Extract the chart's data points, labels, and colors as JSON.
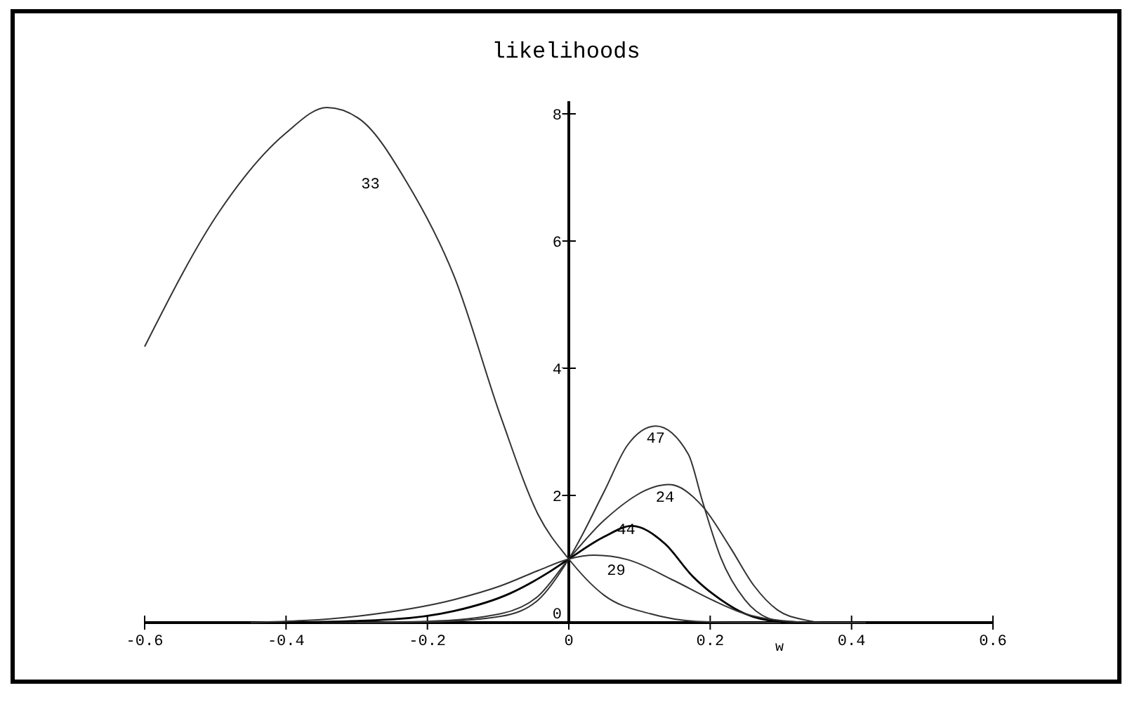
{
  "chart_data": {
    "type": "line",
    "title": "likelihoods",
    "xlabel": "w",
    "xlim": [
      -0.6,
      0.6
    ],
    "ylim": [
      0,
      8.2
    ],
    "xticks": [
      -0.6,
      -0.4,
      -0.2,
      0,
      0.2,
      0.4,
      0.6
    ],
    "yticks": [
      0,
      2,
      4,
      6,
      8
    ],
    "grid": false,
    "legend": false,
    "marker": "none",
    "line_style": "solid",
    "series": [
      {
        "name": "33",
        "color": "#333333",
        "x": [
          -0.6,
          -0.494,
          -0.401,
          -0.342,
          -0.295,
          -0.229,
          -0.162,
          -0.096,
          -0.043,
          0,
          0.05,
          0.115,
          0.18,
          0.25,
          0.3
        ],
        "values": [
          4.34,
          6.47,
          7.69,
          8.1,
          7.91,
          6.92,
          5.44,
          3.23,
          1.69,
          1,
          0.43,
          0.14,
          0.02,
          0,
          0
        ]
      },
      {
        "name": "47",
        "color": "#333333",
        "x": [
          -0.3,
          -0.2,
          -0.096,
          -0.043,
          0,
          0.05,
          0.083,
          0.123,
          0.169,
          0.189,
          0.215,
          0.249,
          0.282,
          0.315,
          0.35
        ],
        "values": [
          0,
          0.01,
          0.1,
          0.36,
          1,
          2.06,
          2.79,
          3.09,
          2.65,
          1.91,
          1.02,
          0.36,
          0.07,
          0,
          0
        ]
      },
      {
        "name": "24",
        "color": "#333333",
        "x": [
          -0.35,
          -0.2,
          -0.096,
          -0.043,
          0,
          0.05,
          0.142,
          0.189,
          0.229,
          0.262,
          0.295,
          0.335,
          0.36,
          0.4
        ],
        "values": [
          0,
          0.02,
          0.14,
          0.42,
          1,
          1.61,
          2.17,
          1.83,
          1.17,
          0.58,
          0.2,
          0.04,
          0,
          0
        ]
      },
      {
        "name": "44",
        "color": "#000000",
        "x": [
          -0.4,
          -0.25,
          -0.163,
          -0.083,
          -0.03,
          0,
          0.05,
          0.089,
          0.136,
          0.175,
          0.215,
          0.249,
          0.295,
          0.35,
          0.38
        ],
        "values": [
          0,
          0.05,
          0.18,
          0.46,
          0.78,
          1,
          1.35,
          1.52,
          1.24,
          0.73,
          0.36,
          0.14,
          0.02,
          0,
          0
        ]
      },
      {
        "name": "29",
        "color": "#333333",
        "x": [
          -0.45,
          -0.3,
          -0.163,
          -0.096,
          -0.043,
          0,
          0.036,
          0.083,
          0.149,
          0.202,
          0.249,
          0.302,
          0.35,
          0.42
        ],
        "values": [
          0,
          0.1,
          0.36,
          0.58,
          0.82,
          1,
          1.06,
          0.99,
          0.66,
          0.36,
          0.14,
          0.03,
          0,
          0
        ]
      }
    ]
  }
}
